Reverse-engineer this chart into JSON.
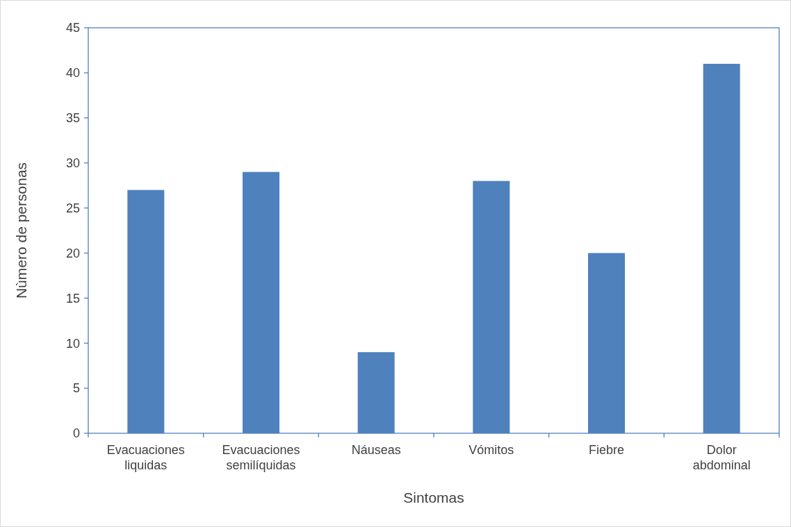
{
  "chart_data": {
    "type": "bar",
    "categories": [
      "Evacuaciones\nliquidas",
      "Evacuaciones\nsemilíquidas",
      "Náuseas",
      "Vómitos",
      "Fiebre",
      "Dolor\nabdominal"
    ],
    "values": [
      27,
      29,
      9,
      28,
      20,
      41
    ],
    "color": "#4f81bd",
    "xlabel": "Sintomas",
    "ylabel": "Nùmero de personas",
    "ylim": [
      0,
      45
    ],
    "yticks": [
      0,
      5,
      10,
      15,
      20,
      25,
      30,
      35,
      40,
      45
    ],
    "grid": false
  }
}
